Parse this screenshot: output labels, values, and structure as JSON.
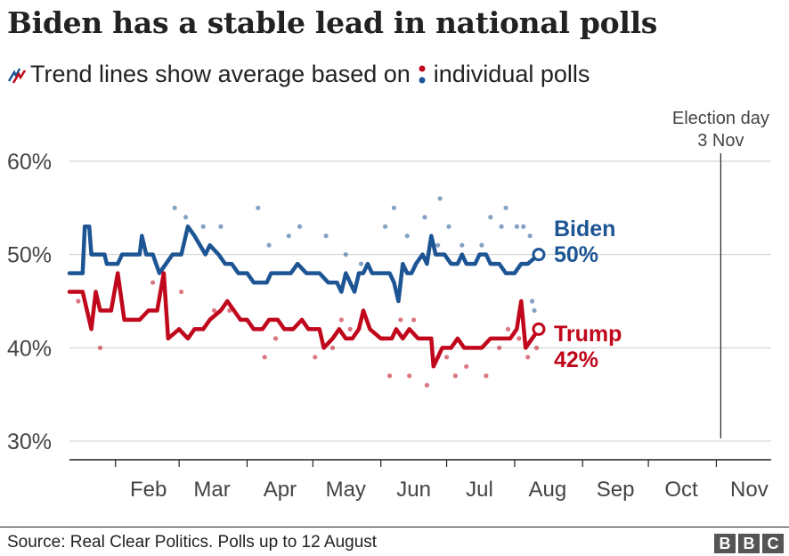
{
  "header": {
    "title": "Biden has a stable lead in national polls",
    "subtitle_part1": "Trend lines show average based on",
    "subtitle_part2": "individual polls"
  },
  "footer": {
    "source": "Source: Real Clear Politics. Polls up to 12 August",
    "logo": [
      "B",
      "B",
      "C"
    ]
  },
  "colors": {
    "biden": "#1d5594",
    "trump": "#c0071b",
    "grid": "#cccccc",
    "axis": "#222222"
  },
  "chart_data": {
    "type": "line",
    "year": 2020,
    "y_tick_labels": [
      "30%",
      "40%",
      "50%",
      "60%"
    ],
    "y_ticks": [
      30,
      40,
      50,
      60
    ],
    "ylim": [
      28,
      62
    ],
    "x_tick_labels": [
      "Feb",
      "Mar",
      "Apr",
      "May",
      "Jun",
      "Jul",
      "Aug",
      "Sep",
      "Oct",
      "Nov"
    ],
    "x_ticks": [
      "2020-02-01",
      "2020-03-01",
      "2020-04-01",
      "2020-05-01",
      "2020-06-01",
      "2020-07-01",
      "2020-08-01",
      "2020-09-01",
      "2020-10-01",
      "2020-11-01"
    ],
    "xlim": [
      "2020-01-11",
      "2020-11-26"
    ],
    "grid": true,
    "annotation": {
      "label_line1": "Election day",
      "label_line2": "3 Nov",
      "date": "2020-11-03"
    },
    "series": [
      {
        "name": "Biden",
        "end_label": "50%",
        "trend": [
          [
            "2020-01-11",
            48
          ],
          [
            "2020-01-17",
            48
          ],
          [
            "2020-01-18",
            53
          ],
          [
            "2020-01-20",
            53
          ],
          [
            "2020-01-21",
            50
          ],
          [
            "2020-01-27",
            50
          ],
          [
            "2020-01-28",
            49
          ],
          [
            "2020-02-02",
            49
          ],
          [
            "2020-02-04",
            50
          ],
          [
            "2020-02-12",
            50
          ],
          [
            "2020-02-13",
            52
          ],
          [
            "2020-02-15",
            50
          ],
          [
            "2020-02-18",
            50
          ],
          [
            "2020-02-21",
            48
          ],
          [
            "2020-02-24",
            49
          ],
          [
            "2020-02-27",
            50
          ],
          [
            "2020-03-02",
            50
          ],
          [
            "2020-03-05",
            53
          ],
          [
            "2020-03-08",
            52
          ],
          [
            "2020-03-13",
            50
          ],
          [
            "2020-03-15",
            51
          ],
          [
            "2020-03-19",
            50
          ],
          [
            "2020-03-22",
            49
          ],
          [
            "2020-03-25",
            49
          ],
          [
            "2020-03-28",
            48
          ],
          [
            "2020-04-01",
            48
          ],
          [
            "2020-04-04",
            47
          ],
          [
            "2020-04-10",
            47
          ],
          [
            "2020-04-12",
            48
          ],
          [
            "2020-04-18",
            48
          ],
          [
            "2020-04-21",
            48
          ],
          [
            "2020-04-24",
            49
          ],
          [
            "2020-04-28",
            48
          ],
          [
            "2020-05-04",
            48
          ],
          [
            "2020-05-08",
            47
          ],
          [
            "2020-05-12",
            47
          ],
          [
            "2020-05-14",
            46
          ],
          [
            "2020-05-16",
            48
          ],
          [
            "2020-05-18",
            47
          ],
          [
            "2020-05-20",
            46
          ],
          [
            "2020-05-22",
            48
          ],
          [
            "2020-05-24",
            48
          ],
          [
            "2020-05-26",
            49
          ],
          [
            "2020-05-28",
            48
          ],
          [
            "2020-06-01",
            48
          ],
          [
            "2020-06-05",
            48
          ],
          [
            "2020-06-07",
            47
          ],
          [
            "2020-06-09",
            45
          ],
          [
            "2020-06-11",
            49
          ],
          [
            "2020-06-13",
            48
          ],
          [
            "2020-06-15",
            48
          ],
          [
            "2020-06-17",
            49
          ],
          [
            "2020-06-20",
            50
          ],
          [
            "2020-06-22",
            49
          ],
          [
            "2020-06-24",
            52
          ],
          [
            "2020-06-26",
            50
          ],
          [
            "2020-06-30",
            50
          ],
          [
            "2020-07-03",
            49
          ],
          [
            "2020-07-06",
            49
          ],
          [
            "2020-07-08",
            50
          ],
          [
            "2020-07-10",
            49
          ],
          [
            "2020-07-14",
            49
          ],
          [
            "2020-07-16",
            50
          ],
          [
            "2020-07-19",
            50
          ],
          [
            "2020-07-21",
            49
          ],
          [
            "2020-07-25",
            49
          ],
          [
            "2020-07-28",
            48
          ],
          [
            "2020-08-01",
            48
          ],
          [
            "2020-08-04",
            49
          ],
          [
            "2020-08-07",
            49
          ],
          [
            "2020-08-12",
            50
          ]
        ],
        "polls": [
          [
            "2020-02-28",
            55
          ],
          [
            "2020-03-04",
            54
          ],
          [
            "2020-03-12",
            53
          ],
          [
            "2020-03-20",
            53
          ],
          [
            "2020-04-06",
            55
          ],
          [
            "2020-04-11",
            51
          ],
          [
            "2020-04-20",
            52
          ],
          [
            "2020-04-25",
            53
          ],
          [
            "2020-05-07",
            52
          ],
          [
            "2020-05-16",
            50
          ],
          [
            "2020-05-23",
            49
          ],
          [
            "2020-06-03",
            53
          ],
          [
            "2020-06-07",
            55
          ],
          [
            "2020-06-13",
            52
          ],
          [
            "2020-06-21",
            54
          ],
          [
            "2020-06-25",
            51
          ],
          [
            "2020-06-27",
            51
          ],
          [
            "2020-07-02",
            53
          ],
          [
            "2020-07-08",
            51
          ],
          [
            "2020-07-17",
            51
          ],
          [
            "2020-07-21",
            54
          ],
          [
            "2020-07-26",
            53
          ],
          [
            "2020-07-28",
            55
          ],
          [
            "2020-08-02",
            53
          ],
          [
            "2020-08-05",
            53
          ],
          [
            "2020-08-08",
            52
          ],
          [
            "2020-08-09",
            45
          ],
          [
            "2020-08-10",
            44
          ],
          [
            "2020-06-28",
            56
          ]
        ]
      },
      {
        "name": "Trump",
        "end_label": "42%",
        "trend": [
          [
            "2020-01-11",
            46
          ],
          [
            "2020-01-17",
            46
          ],
          [
            "2020-01-19",
            44
          ],
          [
            "2020-01-21",
            42
          ],
          [
            "2020-01-23",
            46
          ],
          [
            "2020-01-25",
            44
          ],
          [
            "2020-01-30",
            44
          ],
          [
            "2020-02-02",
            48
          ],
          [
            "2020-02-05",
            43
          ],
          [
            "2020-02-12",
            43
          ],
          [
            "2020-02-16",
            44
          ],
          [
            "2020-02-20",
            44
          ],
          [
            "2020-02-23",
            48
          ],
          [
            "2020-02-25",
            41
          ],
          [
            "2020-03-01",
            42
          ],
          [
            "2020-03-05",
            41
          ],
          [
            "2020-03-08",
            42
          ],
          [
            "2020-03-12",
            42
          ],
          [
            "2020-03-15",
            43
          ],
          [
            "2020-03-20",
            44
          ],
          [
            "2020-03-23",
            45
          ],
          [
            "2020-03-26",
            44
          ],
          [
            "2020-03-29",
            43
          ],
          [
            "2020-04-01",
            43
          ],
          [
            "2020-04-04",
            42
          ],
          [
            "2020-04-08",
            42
          ],
          [
            "2020-04-11",
            43
          ],
          [
            "2020-04-15",
            43
          ],
          [
            "2020-04-18",
            42
          ],
          [
            "2020-04-22",
            42
          ],
          [
            "2020-04-26",
            43
          ],
          [
            "2020-04-29",
            42
          ],
          [
            "2020-05-04",
            42
          ],
          [
            "2020-05-06",
            40
          ],
          [
            "2020-05-10",
            41
          ],
          [
            "2020-05-13",
            42
          ],
          [
            "2020-05-16",
            41
          ],
          [
            "2020-05-19",
            41
          ],
          [
            "2020-05-22",
            42
          ],
          [
            "2020-05-24",
            44
          ],
          [
            "2020-05-27",
            42
          ],
          [
            "2020-06-01",
            41
          ],
          [
            "2020-06-06",
            41
          ],
          [
            "2020-06-08",
            42
          ],
          [
            "2020-06-11",
            41
          ],
          [
            "2020-06-14",
            42
          ],
          [
            "2020-06-18",
            41
          ],
          [
            "2020-06-24",
            41
          ],
          [
            "2020-06-25",
            38
          ],
          [
            "2020-06-27",
            39
          ],
          [
            "2020-06-29",
            40
          ],
          [
            "2020-07-03",
            40
          ],
          [
            "2020-07-06",
            41
          ],
          [
            "2020-07-09",
            40
          ],
          [
            "2020-07-14",
            40
          ],
          [
            "2020-07-17",
            40
          ],
          [
            "2020-07-21",
            41
          ],
          [
            "2020-07-26",
            41
          ],
          [
            "2020-07-30",
            41
          ],
          [
            "2020-08-02",
            42
          ],
          [
            "2020-08-04",
            45
          ],
          [
            "2020-08-06",
            40
          ],
          [
            "2020-08-09",
            41
          ],
          [
            "2020-08-12",
            42
          ]
        ],
        "polls": [
          [
            "2020-01-15",
            45
          ],
          [
            "2020-01-25",
            40
          ],
          [
            "2020-02-18",
            47
          ],
          [
            "2020-03-02",
            46
          ],
          [
            "2020-03-17",
            44
          ],
          [
            "2020-03-24",
            44
          ],
          [
            "2020-04-09",
            39
          ],
          [
            "2020-04-14",
            41
          ],
          [
            "2020-04-21",
            42
          ],
          [
            "2020-05-02",
            39
          ],
          [
            "2020-05-10",
            40
          ],
          [
            "2020-05-14",
            43
          ],
          [
            "2020-05-18",
            42
          ],
          [
            "2020-06-02",
            41
          ],
          [
            "2020-06-05",
            37
          ],
          [
            "2020-06-10",
            43
          ],
          [
            "2020-06-14",
            37
          ],
          [
            "2020-06-16",
            43
          ],
          [
            "2020-06-22",
            36
          ],
          [
            "2020-06-27",
            39
          ],
          [
            "2020-07-01",
            39
          ],
          [
            "2020-07-05",
            37
          ],
          [
            "2020-07-10",
            38
          ],
          [
            "2020-07-19",
            37
          ],
          [
            "2020-07-25",
            40
          ],
          [
            "2020-07-29",
            42
          ],
          [
            "2020-08-03",
            41
          ],
          [
            "2020-08-07",
            39
          ],
          [
            "2020-08-11",
            40
          ]
        ]
      }
    ]
  }
}
